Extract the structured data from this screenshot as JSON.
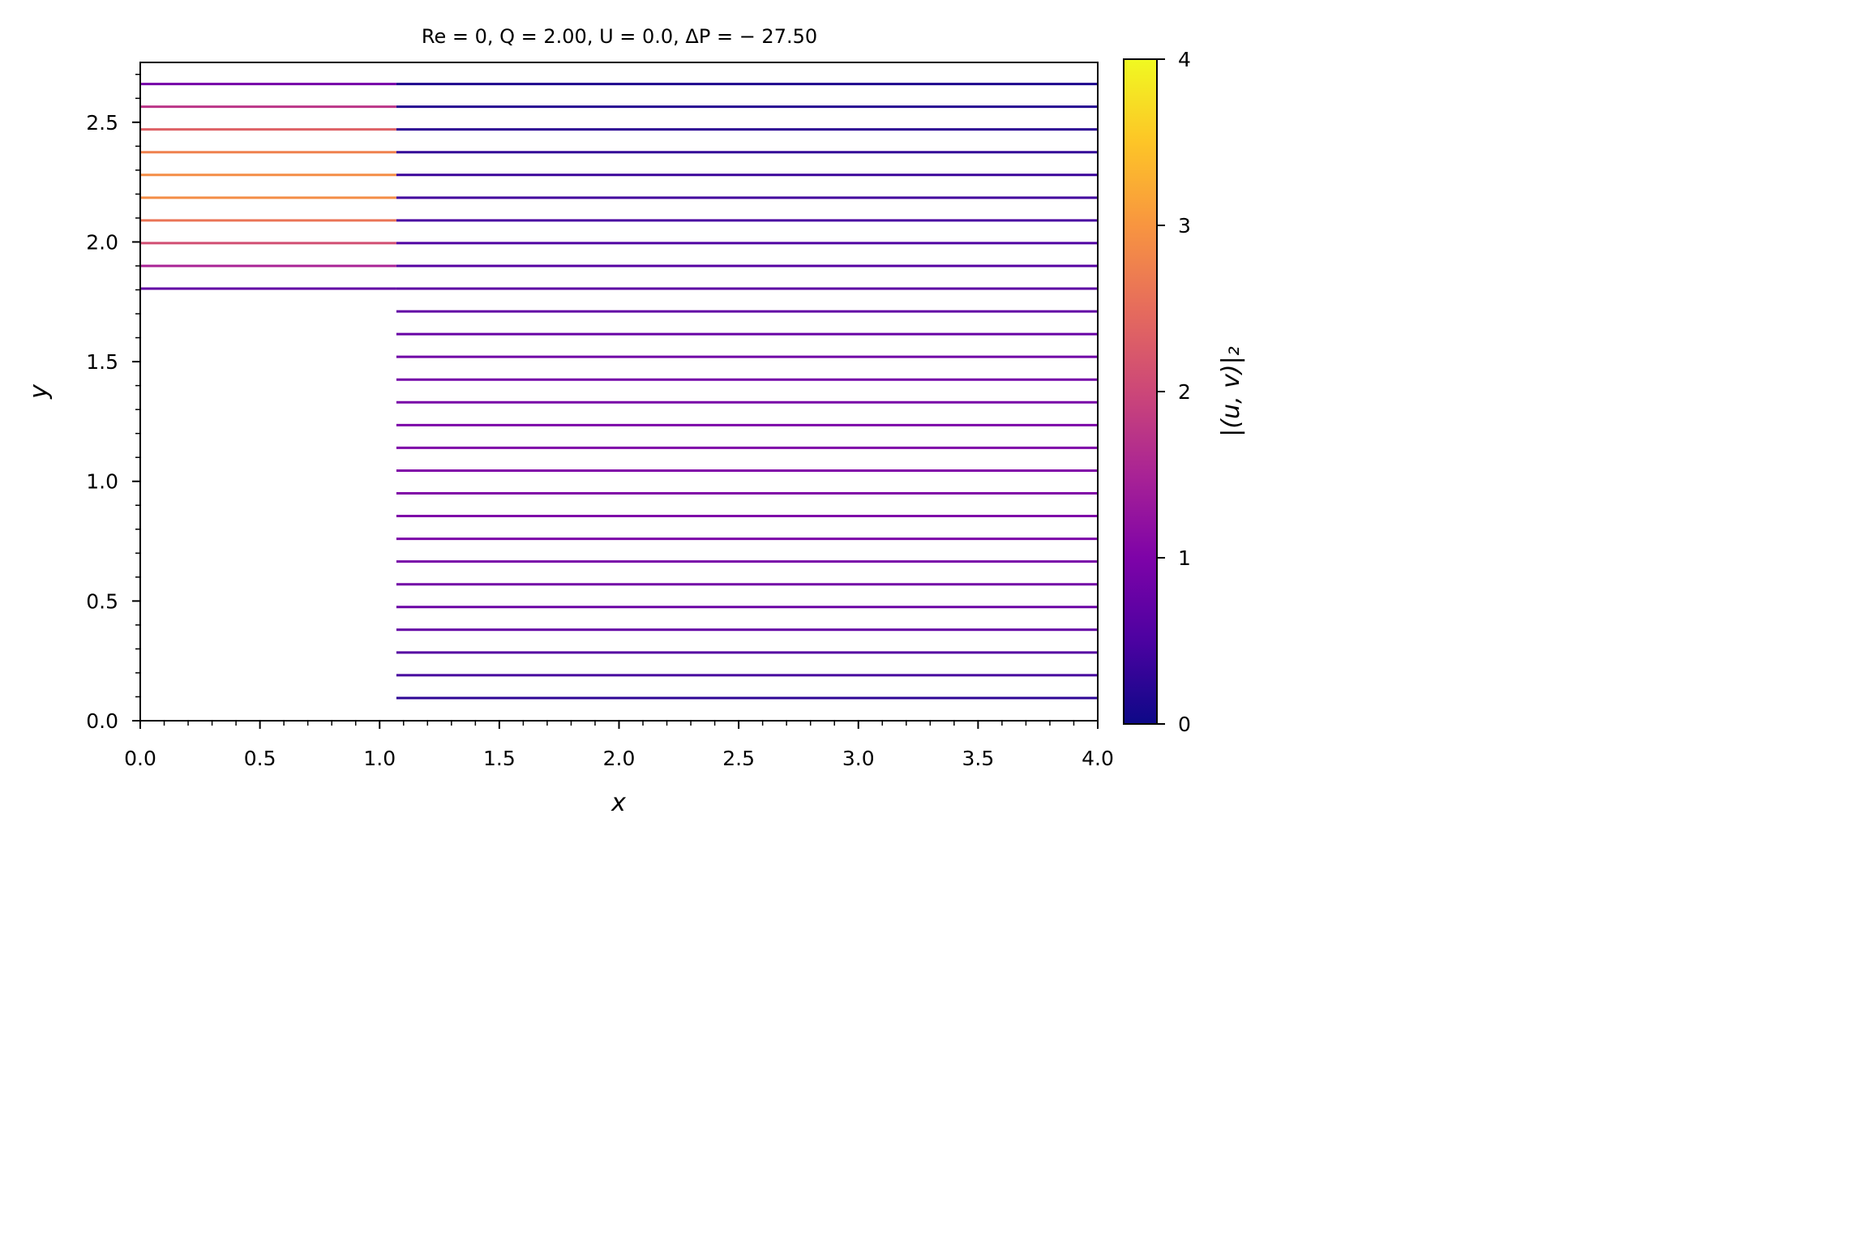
{
  "chart_data": {
    "type": "line",
    "title": "Re = 0, Q = 2.00, U = 0.0, ΔP = − 27.50",
    "xlabel": "x",
    "ylabel": "y",
    "xlim": [
      0,
      4
    ],
    "ylim": [
      0,
      2.75
    ],
    "x_ticks": [
      "0.0",
      "0.5",
      "1.0",
      "1.5",
      "2.0",
      "2.5",
      "3.0",
      "3.5",
      "4.0"
    ],
    "y_ticks": [
      "0.0",
      "0.5",
      "1.0",
      "1.5",
      "2.0",
      "2.5"
    ],
    "grid": false,
    "colormap": "plasma",
    "colorbar": {
      "label": "|(u, v)|₂",
      "range": [
        0,
        4
      ],
      "ticks": [
        "0",
        "1",
        "2",
        "3",
        "4"
      ]
    },
    "step_x": 1.07,
    "streamlines": [
      {
        "y": 0.095,
        "x_start": 1.07,
        "x_end": 4.0,
        "speed_left": null,
        "speed_right": 0.25
      },
      {
        "y": 0.19,
        "x_start": 1.07,
        "x_end": 4.0,
        "speed_left": null,
        "speed_right": 0.45
      },
      {
        "y": 0.285,
        "x_start": 1.07,
        "x_end": 4.0,
        "speed_left": null,
        "speed_right": 0.6
      },
      {
        "y": 0.38,
        "x_start": 1.07,
        "x_end": 4.0,
        "speed_left": null,
        "speed_right": 0.72
      },
      {
        "y": 0.475,
        "x_start": 1.07,
        "x_end": 4.0,
        "speed_left": null,
        "speed_right": 0.8
      },
      {
        "y": 0.57,
        "x_start": 1.07,
        "x_end": 4.0,
        "speed_left": null,
        "speed_right": 0.88
      },
      {
        "y": 0.665,
        "x_start": 1.07,
        "x_end": 4.0,
        "speed_left": null,
        "speed_right": 0.93
      },
      {
        "y": 0.76,
        "x_start": 1.07,
        "x_end": 4.0,
        "speed_left": null,
        "speed_right": 0.97
      },
      {
        "y": 0.855,
        "x_start": 1.07,
        "x_end": 4.0,
        "speed_left": null,
        "speed_right": 1.0
      },
      {
        "y": 0.95,
        "x_start": 1.07,
        "x_end": 4.0,
        "speed_left": null,
        "speed_right": 1.02
      },
      {
        "y": 1.045,
        "x_start": 1.07,
        "x_end": 4.0,
        "speed_left": null,
        "speed_right": 1.02
      },
      {
        "y": 1.14,
        "x_start": 1.07,
        "x_end": 4.0,
        "speed_left": null,
        "speed_right": 1.0
      },
      {
        "y": 1.235,
        "x_start": 1.07,
        "x_end": 4.0,
        "speed_left": null,
        "speed_right": 0.98
      },
      {
        "y": 1.33,
        "x_start": 1.07,
        "x_end": 4.0,
        "speed_left": null,
        "speed_right": 0.94
      },
      {
        "y": 1.425,
        "x_start": 1.07,
        "x_end": 4.0,
        "speed_left": null,
        "speed_right": 0.9
      },
      {
        "y": 1.52,
        "x_start": 1.07,
        "x_end": 4.0,
        "speed_left": null,
        "speed_right": 0.85
      },
      {
        "y": 1.615,
        "x_start": 1.07,
        "x_end": 4.0,
        "speed_left": null,
        "speed_right": 0.78
      },
      {
        "y": 1.71,
        "x_start": 1.07,
        "x_end": 4.0,
        "speed_left": null,
        "speed_right": 0.72
      },
      {
        "y": 1.805,
        "x_start": 0.0,
        "x_end": 4.0,
        "speed_left": 0.72,
        "speed_right": 0.66
      },
      {
        "y": 1.9,
        "x_start": 0.0,
        "x_end": 4.0,
        "speed_left": 1.5,
        "speed_right": 0.6
      },
      {
        "y": 1.995,
        "x_start": 0.0,
        "x_end": 4.0,
        "speed_left": 2.1,
        "speed_right": 0.54
      },
      {
        "y": 2.09,
        "x_start": 0.0,
        "x_end": 4.0,
        "speed_left": 2.6,
        "speed_right": 0.48
      },
      {
        "y": 2.185,
        "x_start": 0.0,
        "x_end": 4.0,
        "speed_left": 2.9,
        "speed_right": 0.42
      },
      {
        "y": 2.28,
        "x_start": 0.0,
        "x_end": 4.0,
        "speed_left": 2.9,
        "speed_right": 0.36
      },
      {
        "y": 2.375,
        "x_start": 0.0,
        "x_end": 4.0,
        "speed_left": 2.75,
        "speed_right": 0.3
      },
      {
        "y": 2.47,
        "x_start": 0.0,
        "x_end": 4.0,
        "speed_left": 2.35,
        "speed_right": 0.24
      },
      {
        "y": 2.565,
        "x_start": 0.0,
        "x_end": 4.0,
        "speed_left": 1.75,
        "speed_right": 0.18
      },
      {
        "y": 2.66,
        "x_start": 0.0,
        "x_end": 4.0,
        "speed_left": 0.9,
        "speed_right": 0.12
      }
    ]
  }
}
